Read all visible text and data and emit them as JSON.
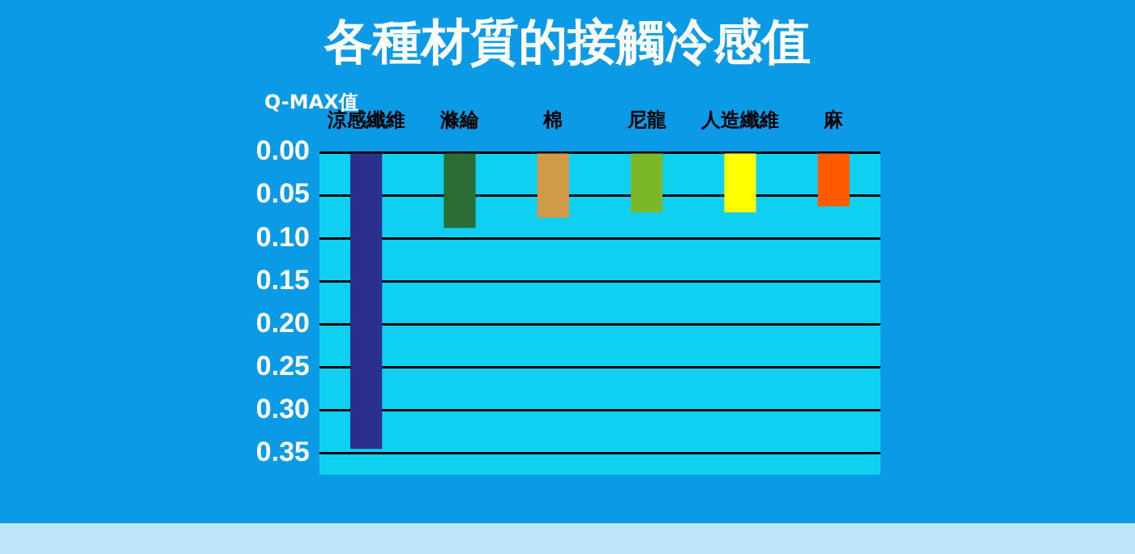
{
  "chart_data": {
    "type": "bar",
    "title": "各種材質的接觸冷感值",
    "ylabel": "Q-MAX值",
    "categories": [
      "涼感纖維",
      "滌綸",
      "棉",
      "尼龍",
      "人造纖維",
      "麻"
    ],
    "values": [
      0.345,
      0.088,
      0.076,
      0.07,
      0.07,
      0.063
    ],
    "colors": [
      "#2a2e8c",
      "#2a6e35",
      "#d09a48",
      "#7ab82a",
      "#ffff00",
      "#ff5a00"
    ],
    "ylim": [
      0.375,
      0
    ],
    "yticks": [
      {
        "value": 0,
        "label": "0.00"
      },
      {
        "value": 0.05,
        "label": "0.05"
      },
      {
        "value": 0.1,
        "label": "0.10"
      },
      {
        "value": 0.15,
        "label": "0.15"
      },
      {
        "value": 0.2,
        "label": "0.20"
      },
      {
        "value": 0.25,
        "label": "0.25"
      },
      {
        "value": 0.3,
        "label": "0.30"
      },
      {
        "value": 0.35,
        "label": "0.35"
      }
    ],
    "grid": "y"
  }
}
